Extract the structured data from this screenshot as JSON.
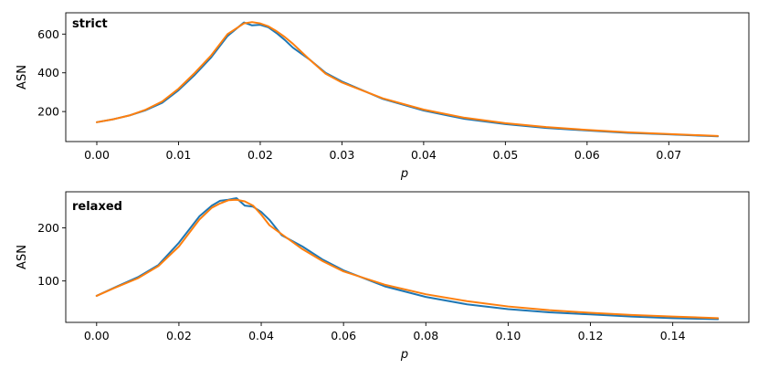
{
  "chart_data": [
    {
      "type": "line",
      "title": "strict",
      "xlabel": "p",
      "ylabel": "ASN",
      "xlim": [
        -0.0038,
        0.0798
      ],
      "ylim": [
        45,
        710
      ],
      "xticks": [
        0.0,
        0.01,
        0.02,
        0.03,
        0.04,
        0.05,
        0.06,
        0.07
      ],
      "xtick_labels": [
        "0.00",
        "0.01",
        "0.02",
        "0.03",
        "0.04",
        "0.05",
        "0.06",
        "0.07"
      ],
      "yticks": [
        200,
        400,
        600
      ],
      "ytick_labels": [
        "200",
        "400",
        "600"
      ],
      "grid": false,
      "series": [
        {
          "color": "#1f77b4",
          "x": [
            0.0,
            0.002,
            0.004,
            0.006,
            0.008,
            0.01,
            0.012,
            0.014,
            0.016,
            0.018,
            0.019,
            0.02,
            0.021,
            0.022,
            0.023,
            0.024,
            0.026,
            0.028,
            0.03,
            0.035,
            0.04,
            0.045,
            0.05,
            0.055,
            0.06,
            0.065,
            0.07,
            0.076
          ],
          "y": [
            145,
            160,
            180,
            207,
            245,
            310,
            390,
            480,
            590,
            660,
            645,
            648,
            635,
            605,
            570,
            530,
            470,
            400,
            355,
            265,
            205,
            162,
            135,
            115,
            102,
            90,
            82,
            72
          ]
        },
        {
          "color": "#ff7f0e",
          "x": [
            0.0,
            0.002,
            0.004,
            0.006,
            0.008,
            0.01,
            0.012,
            0.014,
            0.016,
            0.018,
            0.019,
            0.02,
            0.021,
            0.022,
            0.023,
            0.024,
            0.026,
            0.028,
            0.03,
            0.035,
            0.04,
            0.045,
            0.05,
            0.055,
            0.06,
            0.065,
            0.07,
            0.076
          ],
          "y": [
            145,
            160,
            180,
            210,
            252,
            318,
            400,
            490,
            600,
            655,
            662,
            655,
            640,
            615,
            585,
            550,
            470,
            395,
            350,
            268,
            210,
            168,
            140,
            120,
            105,
            93,
            84,
            74
          ]
        }
      ]
    },
    {
      "type": "line",
      "title": "relaxed",
      "xlabel": "p",
      "ylabel": "ASN",
      "xlim": [
        -0.0075,
        0.1585
      ],
      "ylim": [
        22,
        268
      ],
      "xticks": [
        0.0,
        0.02,
        0.04,
        0.06,
        0.08,
        0.1,
        0.12,
        0.14
      ],
      "xtick_labels": [
        "0.00",
        "0.02",
        "0.04",
        "0.06",
        "0.08",
        "0.10",
        "0.12",
        "0.14"
      ],
      "yticks": [
        100,
        200
      ],
      "ytick_labels": [
        "100",
        "200"
      ],
      "grid": false,
      "series": [
        {
          "color": "#1f77b4",
          "x": [
            0.0,
            0.005,
            0.01,
            0.015,
            0.02,
            0.025,
            0.028,
            0.03,
            0.032,
            0.034,
            0.036,
            0.038,
            0.04,
            0.042,
            0.045,
            0.05,
            0.055,
            0.06,
            0.07,
            0.08,
            0.09,
            0.1,
            0.11,
            0.12,
            0.13,
            0.14,
            0.151
          ],
          "y": [
            72,
            90,
            107,
            130,
            172,
            222,
            242,
            251,
            253,
            256,
            242,
            240,
            230,
            215,
            186,
            165,
            140,
            120,
            90,
            70,
            56,
            47,
            41,
            37,
            33,
            30,
            28
          ]
        },
        {
          "color": "#ff7f0e",
          "x": [
            0.0,
            0.005,
            0.01,
            0.015,
            0.02,
            0.025,
            0.028,
            0.03,
            0.032,
            0.034,
            0.036,
            0.038,
            0.04,
            0.042,
            0.045,
            0.05,
            0.055,
            0.06,
            0.07,
            0.08,
            0.09,
            0.1,
            0.11,
            0.12,
            0.13,
            0.14,
            0.151
          ],
          "y": [
            72,
            89,
            105,
            128,
            165,
            216,
            238,
            246,
            252,
            253,
            250,
            242,
            225,
            205,
            188,
            160,
            137,
            118,
            93,
            75,
            62,
            52,
            45,
            40,
            36,
            33,
            30
          ]
        }
      ]
    }
  ]
}
